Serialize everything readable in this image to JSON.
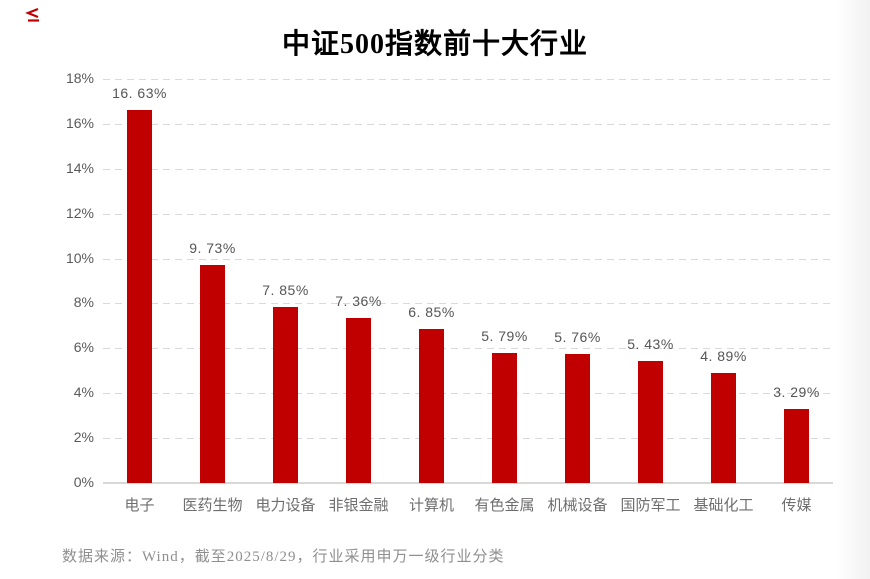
{
  "logo": {
    "name": "red-corner-mark",
    "color": "#c00000"
  },
  "chart_data": {
    "type": "bar",
    "title": "中证500指数前十大行业",
    "categories": [
      "电子",
      "医药生物",
      "电力设备",
      "非银金融",
      "计算机",
      "有色金属",
      "机械设备",
      "国防军工",
      "基础化工",
      "传媒"
    ],
    "values": [
      16.63,
      9.73,
      7.85,
      7.36,
      6.85,
      5.79,
      5.76,
      5.43,
      4.89,
      3.29
    ],
    "data_labels": [
      "16. 63%",
      "9. 73%",
      "7. 85%",
      "7. 36%",
      "6. 85%",
      "5. 79%",
      "5. 76%",
      "5. 43%",
      "4. 89%",
      "3. 29%"
    ],
    "y_ticks": [
      "18%",
      "16%",
      "14%",
      "12%",
      "10%",
      "8%",
      "6%",
      "4%",
      "2%",
      "0%"
    ],
    "ylim": [
      0,
      18
    ],
    "y_step": 2,
    "bar_color": "#c00000",
    "grid": "horizontal-dashed",
    "gridline_color": "#d9d9d9",
    "legend": "none",
    "xlabel": "",
    "ylabel": ""
  },
  "footer": {
    "source_note": "数据来源：Wind，截至2025/8/29，行业采用申万一级行业分类"
  }
}
